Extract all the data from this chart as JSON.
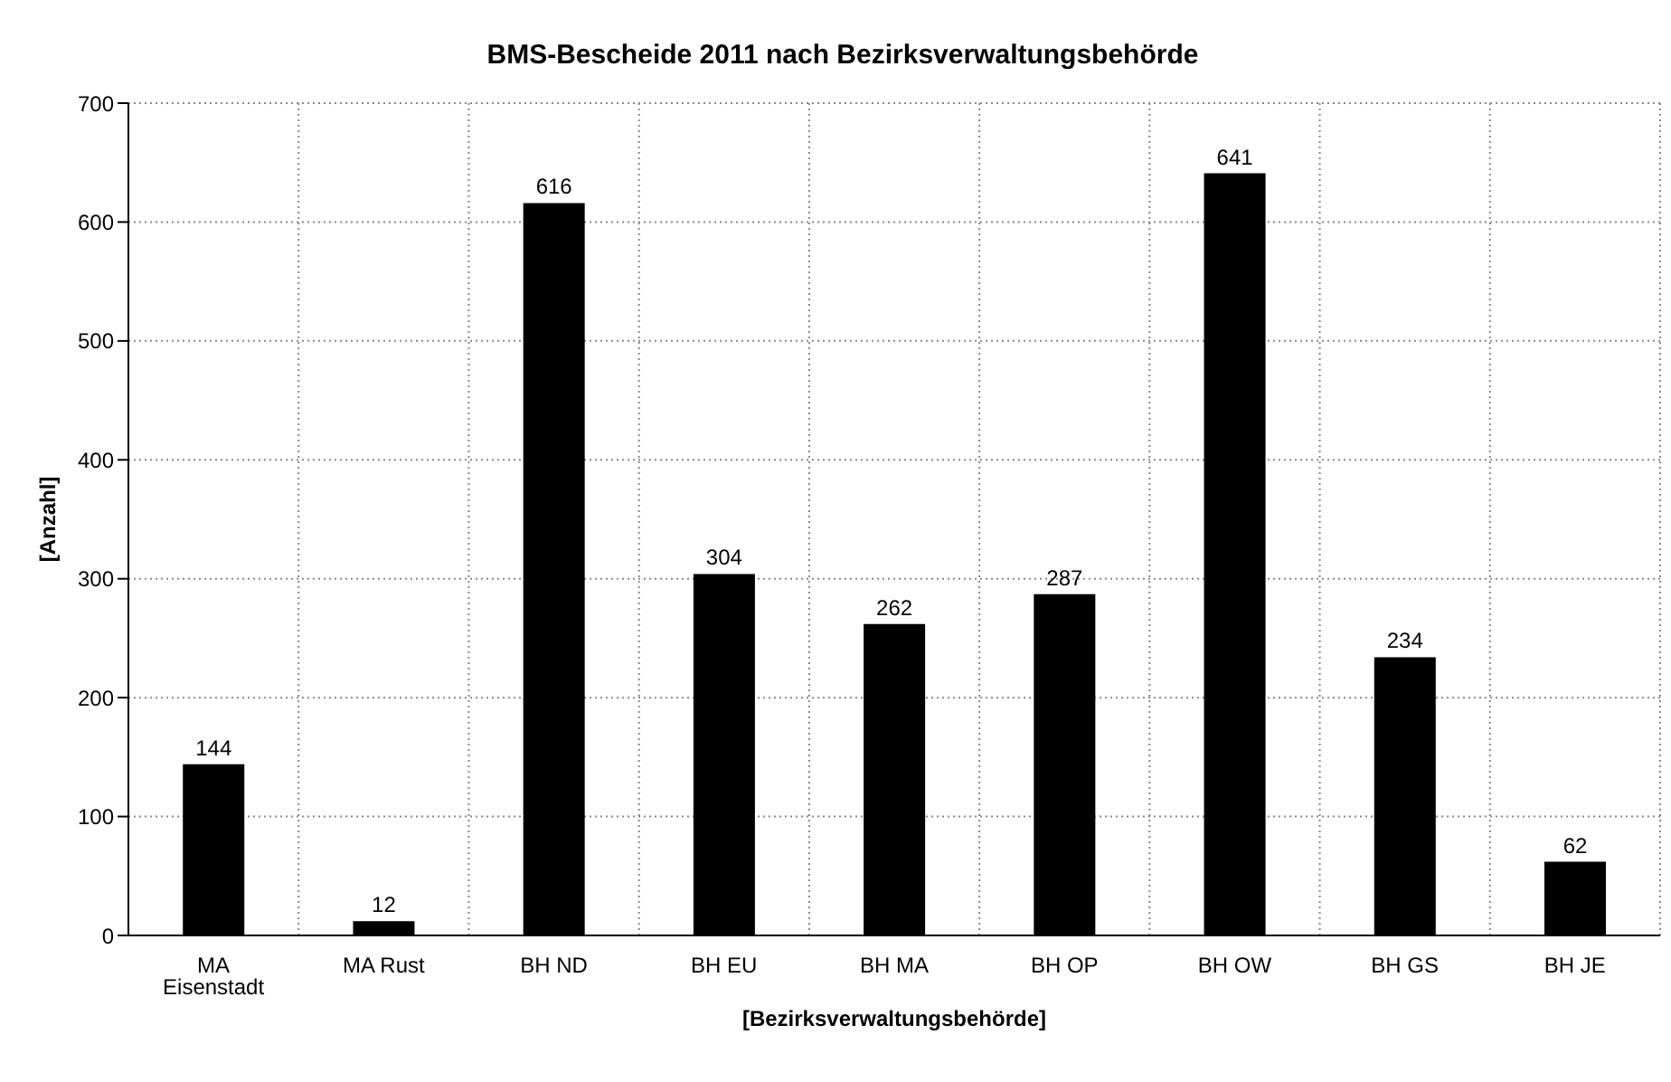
{
  "chart_data": {
    "type": "bar",
    "title": "BMS-Bescheide 2011 nach Bezirksverwaltungsbehörde",
    "xlabel": "[Bezirksverwaltungsbehörde]",
    "ylabel": "[Anzahl]",
    "categories": [
      "MA Eisenstadt",
      "MA Rust",
      "BH ND",
      "BH EU",
      "BH MA",
      "BH OP",
      "BH OW",
      "BH GS",
      "BH JE"
    ],
    "values": [
      144,
      12,
      616,
      304,
      262,
      287,
      641,
      234,
      62
    ],
    "color": "#000000",
    "ylim": [
      0,
      700
    ],
    "yticks": [
      0,
      100,
      200,
      300,
      400,
      500,
      600,
      700
    ],
    "grid": true,
    "data_labels": true
  }
}
